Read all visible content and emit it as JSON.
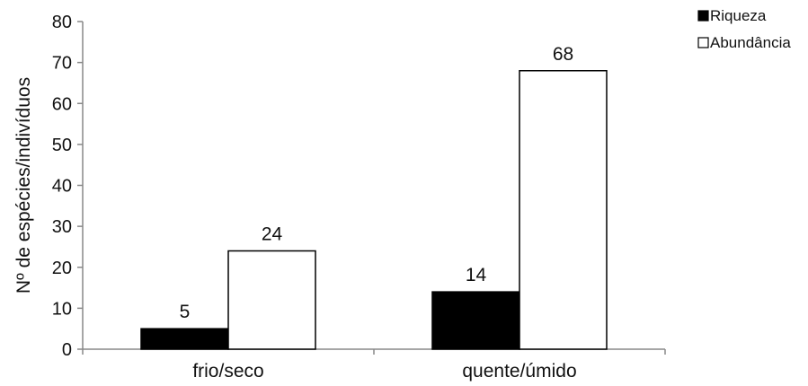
{
  "chart_data": {
    "type": "bar",
    "title": "",
    "xlabel": "",
    "ylabel": "Nº de espécies/indivíduos",
    "ylim": [
      0,
      80
    ],
    "yticks": [
      0,
      10,
      20,
      30,
      40,
      50,
      60,
      70,
      80
    ],
    "grid": false,
    "legend_position": "top-right",
    "categories": [
      "frio/seco",
      "quente/úmido"
    ],
    "series": [
      {
        "name": "Riqueza",
        "values": [
          5,
          14
        ],
        "color": "#000000"
      },
      {
        "name": "Abundância",
        "values": [
          24,
          68
        ],
        "color": "#ffffff"
      }
    ]
  }
}
